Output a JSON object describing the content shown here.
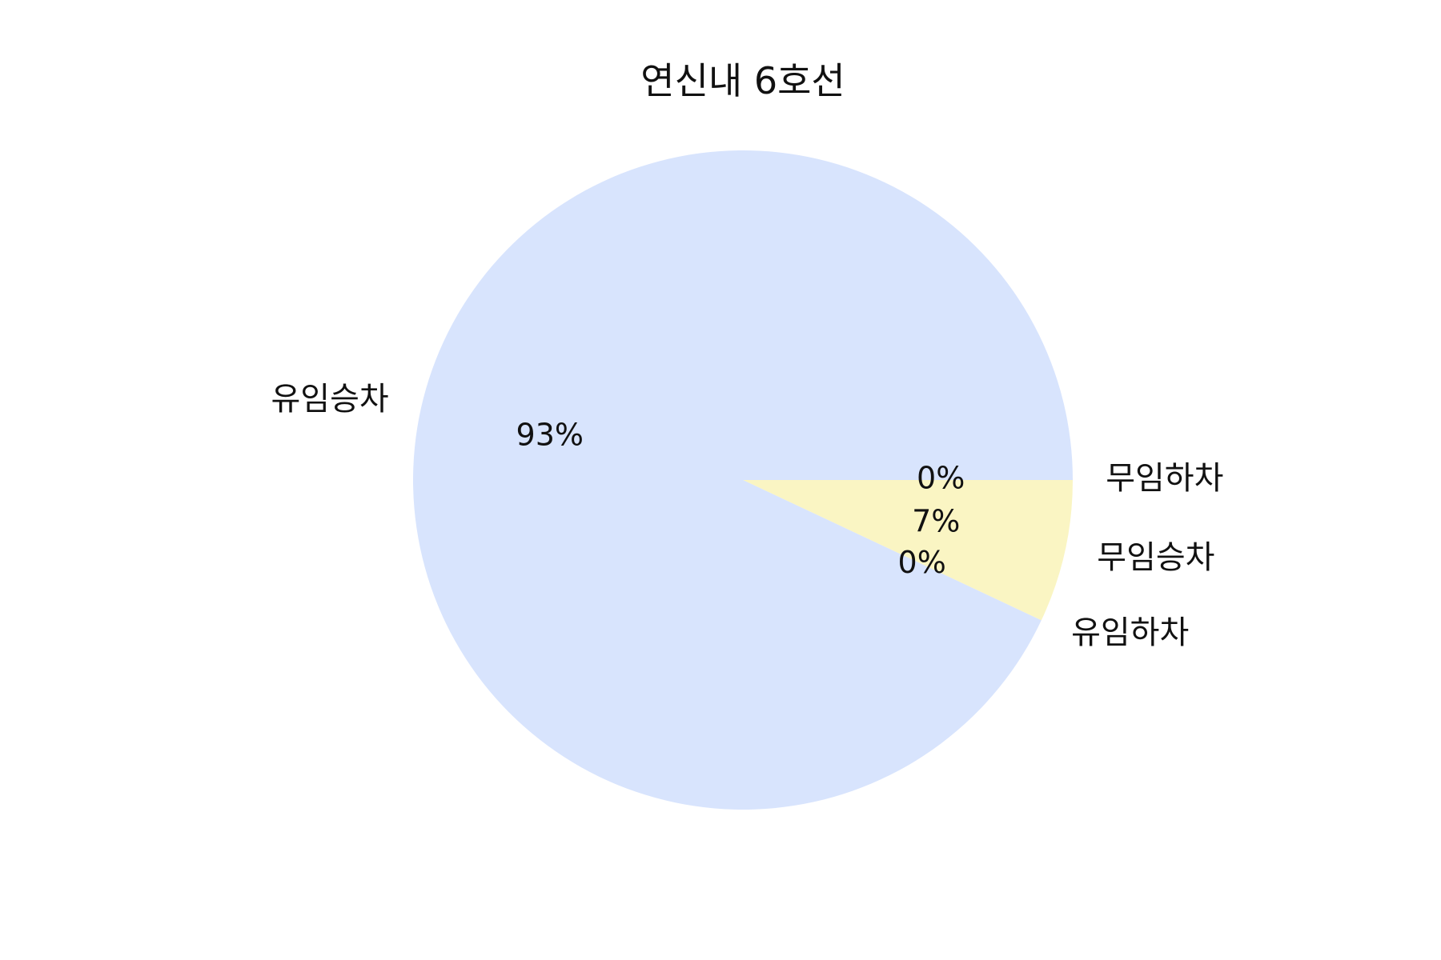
{
  "chart_data": {
    "type": "pie",
    "title": "연신내 6호선",
    "start_angle_deg": 0,
    "direction": "clockwise",
    "slices": [
      {
        "label": "무임하차",
        "value": 0,
        "pct_label": "0%",
        "color": "#d6e4fb"
      },
      {
        "label": "무임승차",
        "value": 7,
        "pct_label": "7%",
        "color": "#faf5c3"
      },
      {
        "label": "유임하차",
        "value": 0,
        "pct_label": "0%",
        "color": "#d6e4fb"
      },
      {
        "label": "유임승차",
        "value": 93,
        "pct_label": "93%",
        "color": "#d8e4fd"
      }
    ]
  }
}
